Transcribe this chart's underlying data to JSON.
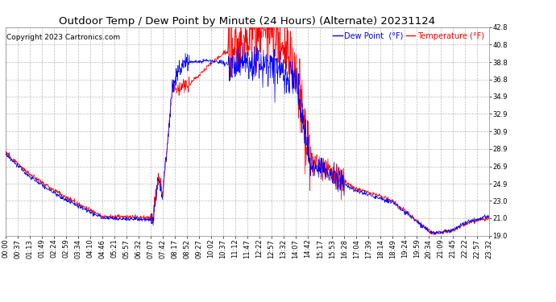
{
  "title": "Outdoor Temp / Dew Point by Minute (24 Hours) (Alternate) 20231124",
  "copyright": "Copyright 2023 Cartronics.com",
  "legend_dew": "Dew Point  (°F)",
  "legend_temp": "Temperature (°F)",
  "dew_color": "#0000ff",
  "temp_color": "#ff0000",
  "background_color": "#ffffff",
  "grid_color": "#aaaaaa",
  "ylim": [
    19.0,
    42.8
  ],
  "yticks": [
    19.0,
    21.0,
    23.0,
    24.9,
    26.9,
    28.9,
    30.9,
    32.9,
    34.9,
    36.8,
    38.8,
    40.8,
    42.8
  ],
  "title_fontsize": 9.5,
  "copyright_fontsize": 6.5,
  "legend_fontsize": 7,
  "axis_fontsize": 6,
  "num_minutes": 1440,
  "x_tick_labels": [
    "00:00",
    "00:37",
    "01:13",
    "01:49",
    "02:24",
    "02:59",
    "03:34",
    "04:10",
    "04:46",
    "05:21",
    "05:57",
    "06:32",
    "07:07",
    "07:42",
    "08:17",
    "08:52",
    "09:27",
    "10:02",
    "10:37",
    "11:12",
    "11:47",
    "12:22",
    "12:57",
    "13:32",
    "14:07",
    "14:42",
    "15:17",
    "15:53",
    "16:28",
    "17:04",
    "17:39",
    "18:14",
    "18:49",
    "19:24",
    "19:59",
    "20:34",
    "21:09",
    "21:45",
    "22:22",
    "22:57",
    "23:32"
  ],
  "temp_keypoints_t": [
    0,
    0.05,
    0.12,
    0.2,
    0.305,
    0.315,
    0.325,
    0.345,
    0.355,
    0.365,
    0.38,
    0.42,
    0.47,
    0.52,
    0.555,
    0.575,
    0.6,
    0.63,
    0.67,
    0.72,
    0.8,
    0.88,
    0.92,
    0.96,
    1.0
  ],
  "temp_keypoints_v": [
    28.5,
    26.0,
    23.5,
    21.2,
    21.0,
    25.5,
    24.0,
    36.0,
    35.5,
    36.5,
    36.2,
    38.5,
    40.5,
    42.2,
    42.5,
    40.0,
    38.0,
    27.5,
    26.5,
    24.5,
    23.0,
    19.3,
    19.5,
    20.5,
    21.0
  ],
  "dew_keypoints_t": [
    0,
    0.05,
    0.12,
    0.2,
    0.305,
    0.315,
    0.325,
    0.345,
    0.355,
    0.365,
    0.38,
    0.42,
    0.47,
    0.52,
    0.555,
    0.575,
    0.6,
    0.63,
    0.67,
    0.72,
    0.8,
    0.88,
    0.92,
    0.96,
    1.0
  ],
  "dew_keypoints_v": [
    28.3,
    25.7,
    23.2,
    21.0,
    20.8,
    25.2,
    23.7,
    35.8,
    37.5,
    38.5,
    38.8,
    39.0,
    38.5,
    38.8,
    38.0,
    37.5,
    36.8,
    27.0,
    26.0,
    24.2,
    22.8,
    19.3,
    19.5,
    20.7,
    21.2
  ]
}
